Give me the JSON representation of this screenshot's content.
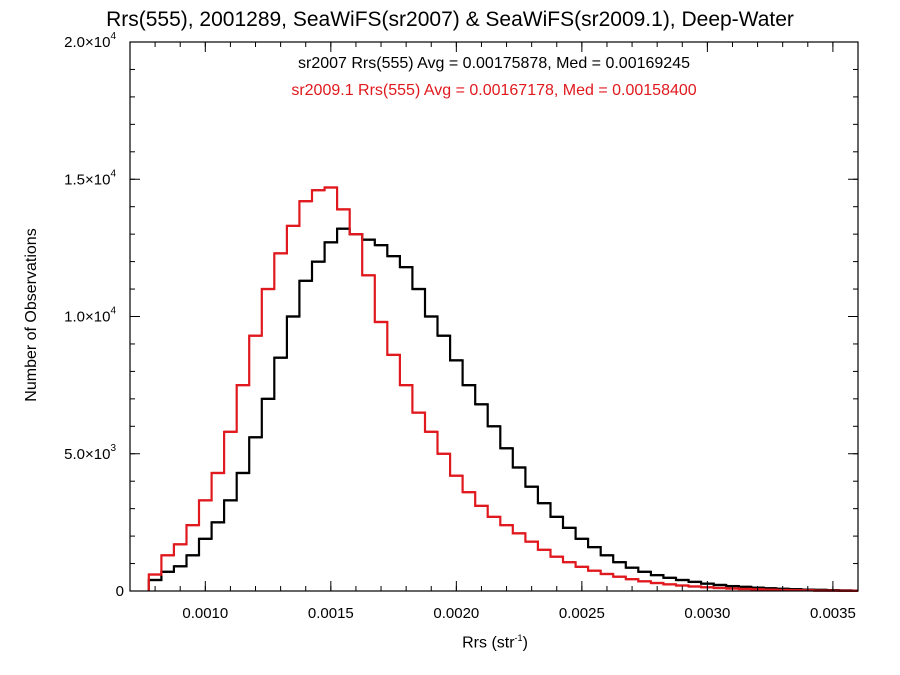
{
  "chart_data": {
    "type": "histogram-step",
    "title": "Rrs(555), 2001289, SeaWiFS(sr2007) & SeaWiFS(sr2009.1), Deep-Water",
    "xlabel": "Rrs (str",
    "xlabel_sup": "-1",
    "xlabel_close": ")",
    "ylabel": "Number of Observations",
    "xlim": [
      0.0007,
      0.0036
    ],
    "ylim": [
      0,
      20000
    ],
    "x_ticks": [
      {
        "value": 0.001,
        "label": "0.0010"
      },
      {
        "value": 0.0015,
        "label": "0.0015"
      },
      {
        "value": 0.002,
        "label": "0.0020"
      },
      {
        "value": 0.0025,
        "label": "0.0025"
      },
      {
        "value": 0.003,
        "label": "0.0030"
      },
      {
        "value": 0.0035,
        "label": "0.0035"
      }
    ],
    "y_ticks": [
      {
        "value": 0,
        "label": "0"
      },
      {
        "value": 5000,
        "mantissa": "5.0×10",
        "exp": "3"
      },
      {
        "value": 10000,
        "mantissa": "1.0×10",
        "exp": "4"
      },
      {
        "value": 15000,
        "mantissa": "1.5×10",
        "exp": "4"
      },
      {
        "value": 20000,
        "mantissa": "2.0×10",
        "exp": "4"
      }
    ],
    "annotations": [
      {
        "text": "sr2007 Rrs(555) Avg = 0.00175878, Med = 0.00169245",
        "color": "#000000"
      },
      {
        "text": "sr2009.1 Rrs(555) Avg = 0.00167178, Med = 0.00158400",
        "color": "#e0191e"
      }
    ],
    "series": [
      {
        "color": "#000000",
        "x": [
          0.0008,
          0.00085,
          0.0009,
          0.00095,
          0.001,
          0.00105,
          0.0011,
          0.00115,
          0.0012,
          0.00125,
          0.0013,
          0.00135,
          0.0014,
          0.00145,
          0.0015,
          0.00155,
          0.0016,
          0.00165,
          0.0017,
          0.00175,
          0.0018,
          0.00185,
          0.0019,
          0.00195,
          0.002,
          0.00205,
          0.0021,
          0.00215,
          0.0022,
          0.00225,
          0.0023,
          0.00235,
          0.0024,
          0.00245,
          0.0025,
          0.00255,
          0.0026,
          0.00265,
          0.0027,
          0.00275,
          0.0028,
          0.00285,
          0.0029,
          0.00295,
          0.003,
          0.00305,
          0.0031,
          0.00315,
          0.0032,
          0.00325,
          0.0033,
          0.00335,
          0.0034,
          0.00345,
          0.0035,
          0.00355,
          0.0036
        ],
        "y": [
          400,
          700,
          900,
          1300,
          1900,
          2500,
          3300,
          4300,
          5600,
          7000,
          8500,
          10000,
          11300,
          12000,
          12700,
          13200,
          13000,
          12800,
          12600,
          12200,
          11800,
          11000,
          10000,
          9300,
          8400,
          7500,
          6800,
          6000,
          5200,
          4500,
          3800,
          3200,
          2700,
          2300,
          1900,
          1600,
          1300,
          1050,
          850,
          700,
          580,
          480,
          400,
          330,
          270,
          220,
          180,
          150,
          120,
          100,
          80,
          65,
          50,
          40,
          30,
          20,
          15
        ]
      },
      {
        "color": "#e0191e",
        "x": [
          0.0008,
          0.00085,
          0.0009,
          0.00095,
          0.001,
          0.00105,
          0.0011,
          0.00115,
          0.0012,
          0.00125,
          0.0013,
          0.00135,
          0.0014,
          0.00145,
          0.0015,
          0.00155,
          0.0016,
          0.00165,
          0.0017,
          0.00175,
          0.0018,
          0.00185,
          0.0019,
          0.00195,
          0.002,
          0.00205,
          0.0021,
          0.00215,
          0.0022,
          0.00225,
          0.0023,
          0.00235,
          0.0024,
          0.00245,
          0.0025,
          0.00255,
          0.0026,
          0.00265,
          0.0027,
          0.00275,
          0.0028,
          0.00285,
          0.0029,
          0.00295,
          0.003,
          0.00305,
          0.0031,
          0.00315,
          0.0032,
          0.00325,
          0.0033,
          0.00335,
          0.0034,
          0.00345,
          0.0035,
          0.00355,
          0.0036
        ],
        "y": [
          600,
          1300,
          1700,
          2400,
          3300,
          4300,
          5800,
          7500,
          9300,
          11000,
          12300,
          13300,
          14200,
          14600,
          14700,
          13900,
          13000,
          11500,
          9800,
          8600,
          7500,
          6500,
          5800,
          5000,
          4200,
          3600,
          3100,
          2700,
          2400,
          2100,
          1800,
          1500,
          1250,
          1050,
          880,
          740,
          620,
          520,
          430,
          350,
          290,
          240,
          200,
          165,
          135,
          110,
          90,
          72,
          58,
          46,
          36,
          28,
          22,
          16,
          12,
          8,
          5
        ]
      }
    ]
  }
}
